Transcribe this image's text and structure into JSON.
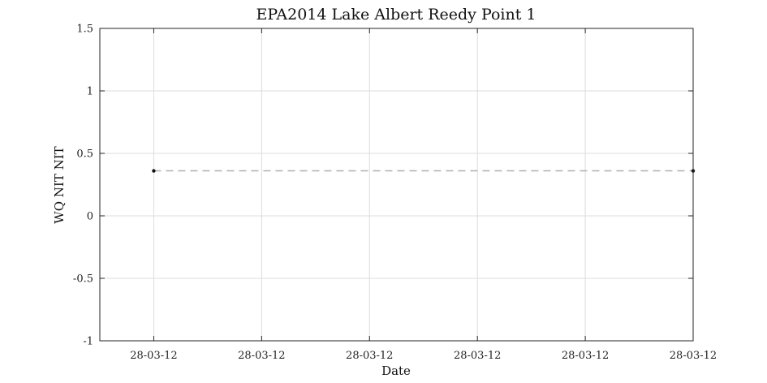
{
  "chart_data": {
    "type": "line",
    "title": "EPA2014 Lake Albert Reedy Point 1",
    "xlabel": "Date",
    "ylabel": "WQ NIT NIT",
    "ylim": [
      -1,
      1.5
    ],
    "yticks": [
      -1,
      -0.5,
      0,
      0.5,
      1,
      1.5
    ],
    "ytick_labels": [
      "-1",
      "-0.5",
      "0",
      "0.5",
      "1",
      "1.5"
    ],
    "xlim": [
      0,
      5.5
    ],
    "xticks": [
      0.5,
      1.5,
      2.5,
      3.5,
      4.5,
      5.5
    ],
    "xtick_labels": [
      "28-03-12",
      "28-03-12",
      "28-03-12",
      "28-03-12",
      "28-03-12",
      "28-03-12"
    ],
    "grid": true,
    "series": [
      {
        "x": [
          0.5,
          5.5
        ],
        "y": [
          0.36,
          0.36
        ],
        "line_style": "dashed",
        "line_color": "#b0b0b0",
        "marker_color": "#111111"
      }
    ]
  }
}
